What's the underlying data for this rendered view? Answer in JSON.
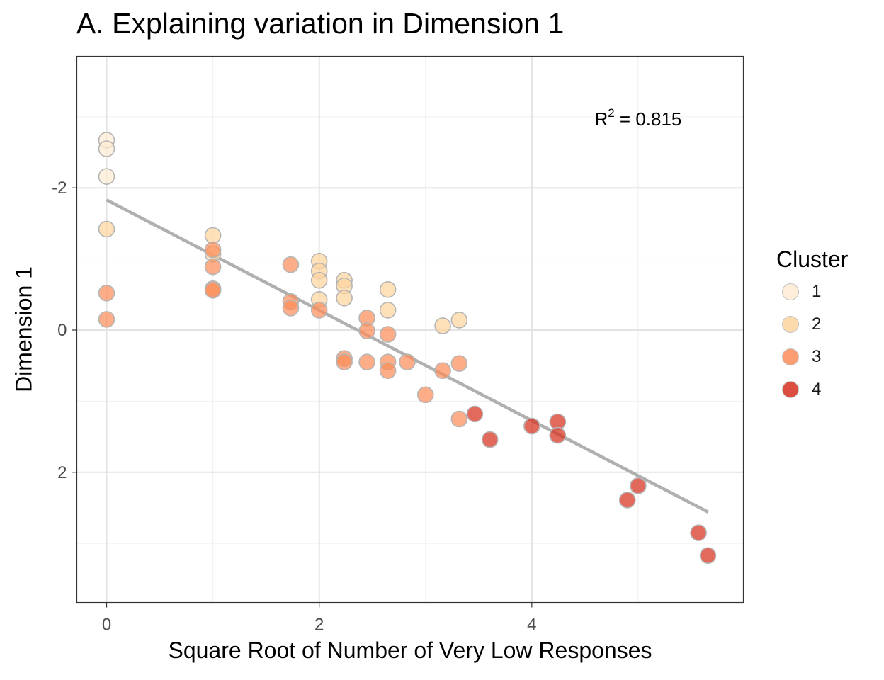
{
  "chart_data": {
    "type": "scatter",
    "title": "A. Explaining variation in Dimension 1",
    "xlabel": "Square Root of Number of Very Low Responses",
    "ylabel": "Dimension 1",
    "xlim": [
      -0.28,
      5.99
    ],
    "ylim": [
      3.83,
      -3.85
    ],
    "y_reversed": true,
    "x_ticks": [
      0,
      2,
      4
    ],
    "y_ticks": [
      -2,
      0,
      2
    ],
    "grid": true,
    "annotation": {
      "text_main": "R",
      "superscript": "2",
      "text_rest": " = 0.815",
      "x": 5.0,
      "y": -2.97
    },
    "trend_line": {
      "color": "#b0b0b0",
      "x": [
        0,
        5.66
      ],
      "y": [
        -1.83,
        2.56
      ]
    },
    "legend": {
      "title": "Cluster",
      "position": "right",
      "items": [
        {
          "label": "1",
          "color": "#fdebd3"
        },
        {
          "label": "2",
          "color": "#fdd49e"
        },
        {
          "label": "3",
          "color": "#fc8d59"
        },
        {
          "label": "4",
          "color": "#d7301f"
        }
      ]
    },
    "series": [
      {
        "name": "1",
        "color": "#fdebd3",
        "x": [
          0,
          0,
          0
        ],
        "y": [
          -2.67,
          -2.55,
          -2.16
        ]
      },
      {
        "name": "2",
        "color": "#fdd49e",
        "x": [
          0,
          1,
          1,
          2,
          2,
          2,
          2,
          2.236,
          2.236,
          2.236,
          2.646,
          2.646,
          3.162,
          3.317
        ],
        "y": [
          -1.42,
          -1.33,
          -1.07,
          -0.97,
          -0.83,
          -0.7,
          -0.43,
          -0.7,
          -0.62,
          -0.45,
          -0.57,
          -0.28,
          -0.06,
          -0.14
        ]
      },
      {
        "name": "3",
        "color": "#fc8d59",
        "x": [
          0,
          0,
          1,
          1,
          1,
          1,
          1.732,
          1.732,
          1.732,
          2,
          2.236,
          2.236,
          2.449,
          2.449,
          2.449,
          2.646,
          2.646,
          2.646,
          2.828,
          3,
          3.162,
          3.317,
          3.317
        ],
        "y": [
          -0.52,
          -0.15,
          -1.13,
          -0.89,
          -0.58,
          -0.56,
          -0.92,
          -0.4,
          -0.31,
          -0.28,
          0.4,
          0.45,
          -0.17,
          0.01,
          0.45,
          0.06,
          0.45,
          0.57,
          0.45,
          0.91,
          0.57,
          0.47,
          1.25
        ]
      },
      {
        "name": "4",
        "color": "#d7301f",
        "x": [
          3.464,
          3.606,
          4,
          4.243,
          4.243,
          4.899,
          5,
          5.568,
          5.657
        ],
        "y": [
          1.18,
          1.54,
          1.35,
          1.29,
          1.48,
          2.39,
          2.19,
          2.85,
          3.17
        ]
      }
    ]
  }
}
